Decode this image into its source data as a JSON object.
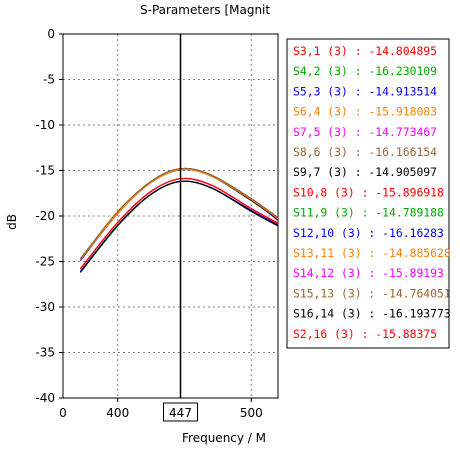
{
  "chart_data": {
    "type": "line",
    "title": "S-Parameters [Magnit",
    "xlabel": "Frequency / M",
    "ylabel": "dB",
    "xlim": [
      359,
      520
    ],
    "ylim": [
      -40,
      0
    ],
    "x_tick_values": [
      400,
      500
    ],
    "x_tick_labels": [
      "400",
      "500"
    ],
    "x_origin_label": "0",
    "y_ticks": [
      0,
      -5,
      -10,
      -15,
      -20,
      -25,
      -30,
      -35,
      -40
    ],
    "y_tick_labels": [
      "0",
      "-5",
      "-10",
      "-15",
      "-20",
      "-25",
      "-30",
      "-35",
      "-40"
    ],
    "grid": true,
    "marker": {
      "x": 447,
      "label": "447"
    },
    "legend_placement": "top-right",
    "curve_x": [
      372,
      400,
      425,
      447,
      470,
      500,
      520
    ],
    "series": [
      {
        "name": "S3,1 (3) : -14.804895",
        "color": "#ff0000",
        "values": [
          -24.8,
          -19.6,
          -16.2,
          -14.8,
          -15.5,
          -18.2,
          -20.5
        ]
      },
      {
        "name": "S4,2 (3) : -16.230109",
        "color": "#00aa00",
        "values": [
          -26.2,
          -21.1,
          -17.6,
          -16.2,
          -16.9,
          -19.5,
          -21.0
        ]
      },
      {
        "name": "S5,3 (3) : -14.913514",
        "color": "#0000ff",
        "values": [
          -24.9,
          -19.7,
          -16.3,
          -14.9,
          -15.6,
          -18.3,
          -20.4
        ]
      },
      {
        "name": "S6,4 (3) : -15.918083",
        "color": "#ff8000",
        "values": [
          -25.8,
          -20.7,
          -17.3,
          -15.9,
          -16.6,
          -19.2,
          -20.8
        ]
      },
      {
        "name": "S7,5 (3) : -14.773467",
        "color": "#ff00ff",
        "values": [
          -24.7,
          -19.6,
          -16.2,
          -14.8,
          -15.5,
          -18.1,
          -20.2
        ]
      },
      {
        "name": "S8,6 (3) : -16.166154",
        "color": "#996633",
        "values": [
          -26.1,
          -21.0,
          -17.6,
          -16.2,
          -16.9,
          -19.4,
          -21.0
        ]
      },
      {
        "name": "S9,7 (3) : -14.905097",
        "color": "#000000",
        "values": [
          -24.8,
          -19.7,
          -16.3,
          -14.9,
          -15.6,
          -18.3,
          -20.3
        ]
      },
      {
        "name": "S10,8 (3) : -15.896918",
        "color": "#ff0000",
        "values": [
          -25.8,
          -20.7,
          -17.3,
          -15.9,
          -16.6,
          -19.2,
          -20.9
        ]
      },
      {
        "name": "S11,9 (3) : -14.789188",
        "color": "#00aa00",
        "values": [
          -24.7,
          -19.6,
          -16.2,
          -14.8,
          -15.5,
          -18.1,
          -20.2
        ]
      },
      {
        "name": "S12,10 (3) : -16.16283",
        "color": "#0000ff",
        "values": [
          -26.1,
          -21.0,
          -17.6,
          -16.2,
          -16.9,
          -19.4,
          -21.0
        ]
      },
      {
        "name": "S13,11 (3) : -14.885628",
        "color": "#ff8000",
        "values": [
          -24.8,
          -19.7,
          -16.3,
          -14.9,
          -15.6,
          -18.2,
          -20.3
        ]
      },
      {
        "name": "S14,12 (3) : -15.89193",
        "color": "#ff00ff",
        "values": [
          -25.8,
          -20.7,
          -17.3,
          -15.9,
          -16.6,
          -19.2,
          -20.8
        ]
      },
      {
        "name": "S15,13 (3) : -14.764051",
        "color": "#996633",
        "values": [
          -24.7,
          -19.5,
          -16.2,
          -14.8,
          -15.5,
          -18.1,
          -20.2
        ]
      },
      {
        "name": "S16,14 (3) : -16.193773",
        "color": "#000000",
        "values": [
          -26.2,
          -21.0,
          -17.6,
          -16.2,
          -16.9,
          -19.5,
          -21.1
        ]
      },
      {
        "name": "S2,16 (3) : -15.88375",
        "color": "#ff0000",
        "values": [
          -25.8,
          -20.7,
          -17.3,
          -15.9,
          -16.6,
          -19.2,
          -20.8
        ]
      }
    ]
  }
}
